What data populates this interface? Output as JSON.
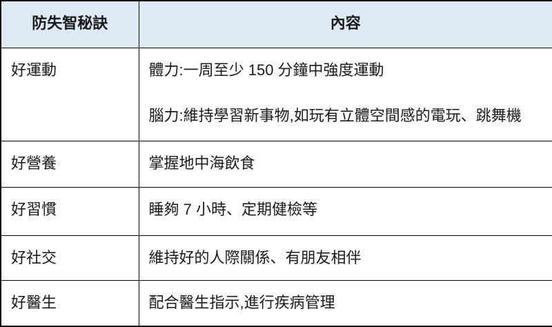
{
  "table": {
    "headers": {
      "tip": "防失智秘訣",
      "content": "內容"
    },
    "rows": [
      {
        "tip": "好運動",
        "content": [
          "體力:一周至少 150 分鐘中強度運動",
          "腦力:維持學習新事物,如玩有立體空間感的電玩、跳舞機"
        ]
      },
      {
        "tip": "好營養",
        "content": [
          "掌握地中海飲食"
        ]
      },
      {
        "tip": "好習慣",
        "content": [
          "睡夠 7 小時、定期健檢等"
        ]
      },
      {
        "tip": "好社交",
        "content": [
          "維持好的人際關係、有朋友相伴"
        ]
      },
      {
        "tip": "好醫生",
        "content": [
          "配合醫生指示,進行疾病管理"
        ]
      }
    ],
    "colors": {
      "header_bg": "#dde9f4",
      "border": "#000000",
      "text": "#1a1a1a"
    }
  }
}
